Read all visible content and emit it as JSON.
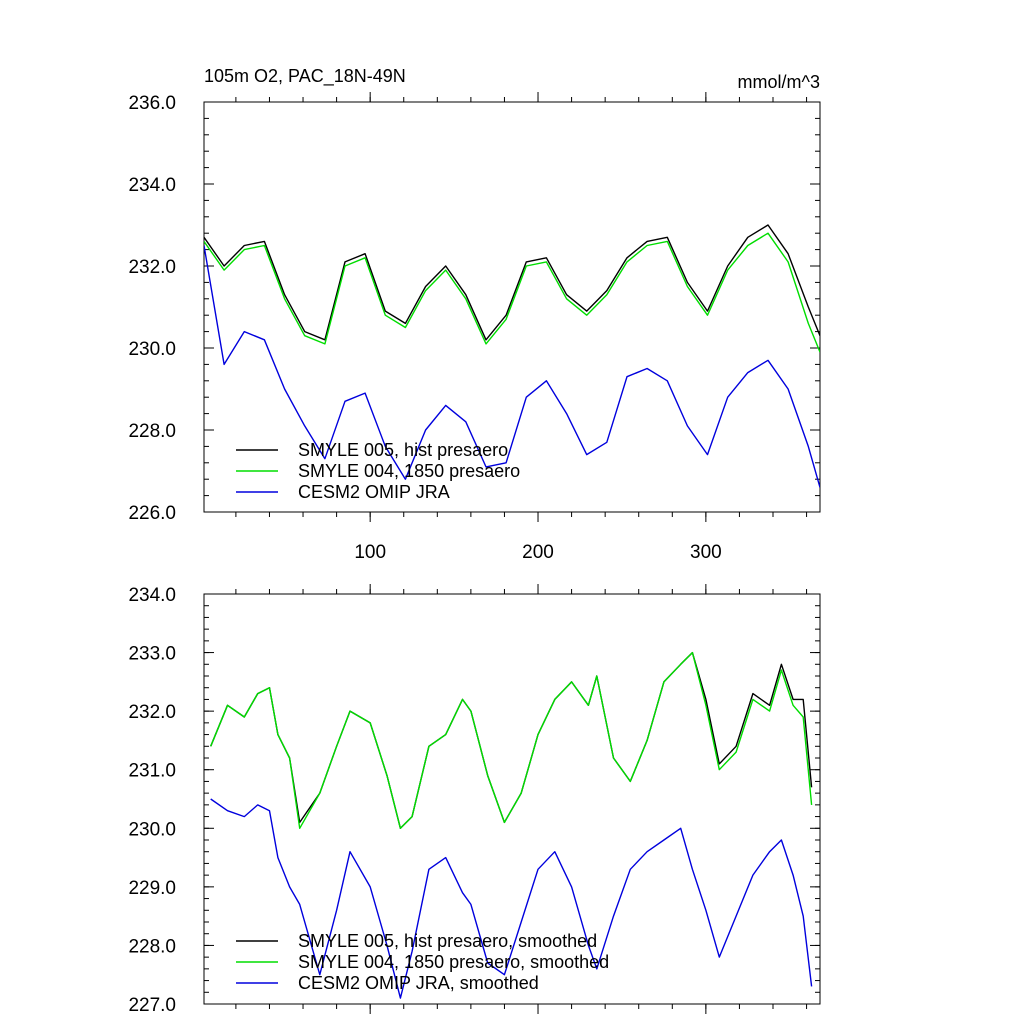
{
  "figure": {
    "title_left": "105m O2, PAC_18N-49N",
    "title_right": "mmol/m^3"
  },
  "chart_data": [
    {
      "type": "line",
      "title": "105m O2, PAC_18N-49N",
      "units": "mmol/m^3",
      "xlabel": "",
      "ylabel": "",
      "xlim": [
        1,
        368
      ],
      "ylim": [
        226,
        236
      ],
      "xticks": [
        100,
        200,
        300
      ],
      "xtick_labels": [
        "100",
        "200",
        "300"
      ],
      "yticks": [
        226,
        228,
        230,
        232,
        234,
        236
      ],
      "ytick_labels": [
        "226.0",
        "228.0",
        "230.0",
        "232.0",
        "234.0",
        "236.0"
      ],
      "grid": false,
      "legend_position": "bottom-left",
      "x": [
        1,
        13,
        25,
        37,
        49,
        61,
        73,
        85,
        97,
        109,
        121,
        133,
        145,
        157,
        169,
        181,
        193,
        205,
        217,
        229,
        241,
        253,
        265,
        277,
        289,
        301,
        313,
        325,
        337,
        349,
        361,
        368
      ],
      "series": [
        {
          "name": "SMYLE 005, hist presaero",
          "color": "#000000",
          "values": [
            232.7,
            232.0,
            232.5,
            232.6,
            231.3,
            230.4,
            230.2,
            232.1,
            232.3,
            230.9,
            230.6,
            231.5,
            232.0,
            231.3,
            230.2,
            230.8,
            232.1,
            232.2,
            231.3,
            230.9,
            231.4,
            232.2,
            232.6,
            232.7,
            231.6,
            230.9,
            232.0,
            232.7,
            233.0,
            232.3,
            231.0,
            230.3
          ]
        },
        {
          "name": "SMYLE 004, 1850 presaero",
          "color": "#00dd00",
          "values": [
            232.6,
            231.9,
            232.4,
            232.5,
            231.2,
            230.3,
            230.1,
            232.0,
            232.2,
            230.8,
            230.5,
            231.4,
            231.9,
            231.2,
            230.1,
            230.7,
            232.0,
            232.1,
            231.2,
            230.8,
            231.3,
            232.1,
            232.5,
            232.6,
            231.5,
            230.8,
            231.9,
            232.5,
            232.8,
            232.1,
            230.6,
            229.9
          ]
        },
        {
          "name": "CESM2 OMIP JRA",
          "color": "#0000dd",
          "values": [
            232.5,
            229.6,
            230.4,
            230.2,
            229.0,
            228.1,
            227.3,
            228.7,
            228.9,
            227.6,
            226.8,
            228.0,
            228.6,
            228.2,
            227.1,
            227.2,
            228.8,
            229.2,
            228.4,
            227.4,
            227.7,
            229.3,
            229.5,
            229.2,
            228.1,
            227.4,
            228.8,
            229.4,
            229.7,
            229.0,
            227.6,
            226.6
          ]
        }
      ]
    },
    {
      "type": "line",
      "title": "",
      "xlabel": "",
      "ylabel": "",
      "xlim": [
        1,
        368
      ],
      "ylim": [
        227,
        234
      ],
      "xticks": [
        100,
        200,
        300
      ],
      "yticks": [
        227,
        228,
        229,
        230,
        231,
        232,
        233,
        234
      ],
      "ytick_labels": [
        "227.0",
        "228.0",
        "229.0",
        "230.0",
        "231.0",
        "232.0",
        "233.0",
        "234.0"
      ],
      "grid": false,
      "legend_position": "bottom-left",
      "x": [
        5,
        15,
        25,
        33,
        40,
        45,
        52,
        58,
        70,
        80,
        88,
        100,
        110,
        118,
        125,
        135,
        145,
        155,
        160,
        170,
        180,
        190,
        200,
        210,
        220,
        230,
        235,
        245,
        255,
        265,
        275,
        285,
        292,
        300,
        308,
        318,
        328,
        338,
        345,
        352,
        358,
        363
      ],
      "series": [
        {
          "name": "SMYLE 005, hist presaero, smoothed",
          "color": "#000000",
          "values": [
            231.4,
            232.1,
            231.9,
            232.3,
            232.4,
            231.6,
            231.2,
            230.1,
            230.6,
            231.4,
            232.0,
            231.8,
            230.9,
            230.0,
            230.2,
            231.4,
            231.6,
            232.2,
            232.0,
            230.9,
            230.1,
            230.6,
            231.6,
            232.2,
            232.5,
            232.1,
            232.6,
            231.2,
            230.8,
            231.5,
            232.5,
            232.8,
            233.0,
            232.2,
            231.1,
            231.4,
            232.3,
            232.1,
            232.8,
            232.2,
            232.2,
            230.7
          ]
        },
        {
          "name": "SMYLE 004, 1850 presaero, smoothed",
          "color": "#00dd00",
          "values": [
            231.4,
            232.1,
            231.9,
            232.3,
            232.4,
            231.6,
            231.2,
            230.0,
            230.6,
            231.4,
            232.0,
            231.8,
            230.9,
            230.0,
            230.2,
            231.4,
            231.6,
            232.2,
            232.0,
            230.9,
            230.1,
            230.6,
            231.6,
            232.2,
            232.5,
            232.1,
            232.6,
            231.2,
            230.8,
            231.5,
            232.5,
            232.8,
            233.0,
            232.1,
            231.0,
            231.3,
            232.2,
            232.0,
            232.7,
            232.1,
            231.9,
            230.4
          ]
        },
        {
          "name": "CESM2 OMIP JRA, smoothed",
          "color": "#0000dd",
          "values": [
            230.5,
            230.3,
            230.2,
            230.4,
            230.3,
            229.5,
            229.0,
            228.7,
            227.5,
            228.6,
            229.6,
            229.0,
            228.0,
            227.1,
            227.9,
            229.3,
            229.5,
            228.9,
            228.7,
            227.7,
            227.5,
            228.4,
            229.3,
            229.6,
            229.0,
            228.0,
            227.6,
            228.5,
            229.3,
            229.6,
            229.8,
            230.0,
            229.3,
            228.6,
            227.8,
            228.5,
            229.2,
            229.6,
            229.8,
            229.2,
            228.5,
            227.3
          ]
        }
      ]
    }
  ]
}
